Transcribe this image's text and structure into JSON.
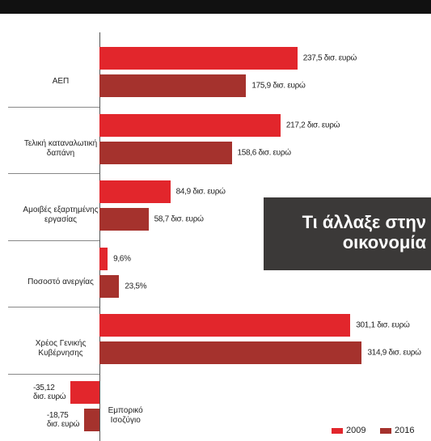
{
  "chart_data": {
    "type": "hbar",
    "annotation": "Τι άλλαξε στην οικονομία",
    "categories": [
      "ΑΕΠ",
      "Τελική καταναλωτική δαπάνη",
      "Αμοιβές εξαρτημένης εργασίας",
      "Ποσοστό ανεργίας",
      "Χρέος Γενικής Κυβέρνησης",
      "Εμπορικό Ισοζύγιο"
    ],
    "series": [
      {
        "name": "2009",
        "color": "#e2262c",
        "values": [
          237.5,
          217.2,
          84.9,
          9.6,
          301.1,
          -35.12
        ],
        "value_labels": [
          "237,5 δισ. ευρώ",
          "217,2 δισ. ευρώ",
          "84,9 δισ. ευρώ",
          "9,6%",
          "301,1 δισ. ευρώ",
          "-35,12 δισ. ευρώ"
        ]
      },
      {
        "name": "2016",
        "color": "#a5322d",
        "values": [
          175.9,
          158.6,
          58.7,
          23.5,
          314.9,
          -18.75
        ],
        "value_labels": [
          "175,9 δισ. ευρώ",
          "158,6 δισ. ευρώ",
          "58,7 δισ. ευρώ",
          "23,5%",
          "314,9 δισ. ευρώ",
          "-18,75 δισ. ευρώ"
        ]
      }
    ],
    "xlim": [
      -40,
      330
    ],
    "legend": "bottom-right"
  }
}
